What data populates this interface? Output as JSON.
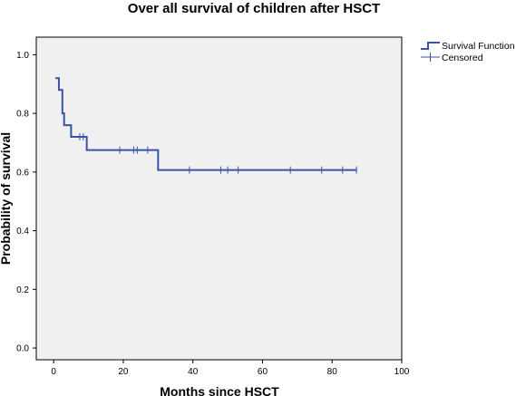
{
  "chart_data": {
    "type": "line",
    "title": "Over all survival of children after HSCT",
    "xlabel": "Months since HSCT",
    "ylabel": "Probability of survival",
    "xlim": [
      -5,
      100
    ],
    "ylim": [
      -0.04,
      1.06
    ],
    "xticks": [
      0,
      20,
      40,
      60,
      80,
      100
    ],
    "yticks": [
      0.0,
      0.2,
      0.4,
      0.6,
      0.8,
      1.0
    ],
    "xtick_labels": [
      "0",
      "20",
      "40",
      "60",
      "80",
      "100"
    ],
    "ytick_labels": [
      "0.0",
      "0.2",
      "0.4",
      "0.6",
      "0.8",
      "1.0"
    ],
    "grid": false,
    "legend_position": "top-right",
    "plot_background": "#f0f0f0",
    "series": [
      {
        "name": "Survival Function",
        "step": true,
        "color": "#3a54a4",
        "x": [
          0.5,
          1.5,
          2.5,
          3,
          5,
          9.5,
          30,
          87
        ],
        "y": [
          0.92,
          0.88,
          0.8,
          0.76,
          0.72,
          0.675,
          0.607,
          0.607
        ]
      },
      {
        "name": "Censored",
        "marker": "+",
        "color": "#3a54a4",
        "x": [
          7.5,
          8.5,
          19,
          23,
          24,
          27,
          39,
          48,
          50,
          53,
          68,
          77,
          83,
          87
        ],
        "y": [
          0.72,
          0.72,
          0.675,
          0.675,
          0.675,
          0.675,
          0.607,
          0.607,
          0.607,
          0.607,
          0.607,
          0.607,
          0.607,
          0.607
        ]
      }
    ],
    "legend": [
      "Survival Function",
      "Censored"
    ]
  }
}
